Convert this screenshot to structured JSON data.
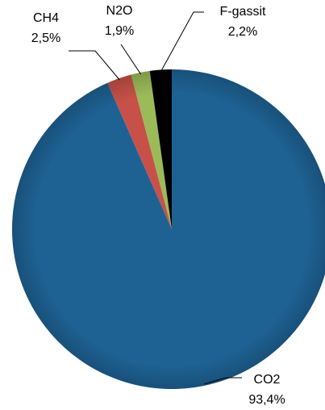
{
  "chart_data": {
    "type": "pie",
    "slices": [
      {
        "label": "CO2",
        "value_text": "93,4%",
        "value": 93.4,
        "color": "#1e6294"
      },
      {
        "label": "CH4",
        "value_text": "2,5%",
        "value": 2.5,
        "color": "#c75148"
      },
      {
        "label": "N2O",
        "value_text": "1,9%",
        "value": 1.9,
        "color": "#9bbb59"
      },
      {
        "label": "F-gassit",
        "value_text": "2,2%",
        "value": 2.2,
        "color": "#000000"
      }
    ],
    "start_angle": "12 o'clock",
    "direction": "clockwise",
    "label_placement": "outside with leader lines",
    "legend": "none"
  }
}
